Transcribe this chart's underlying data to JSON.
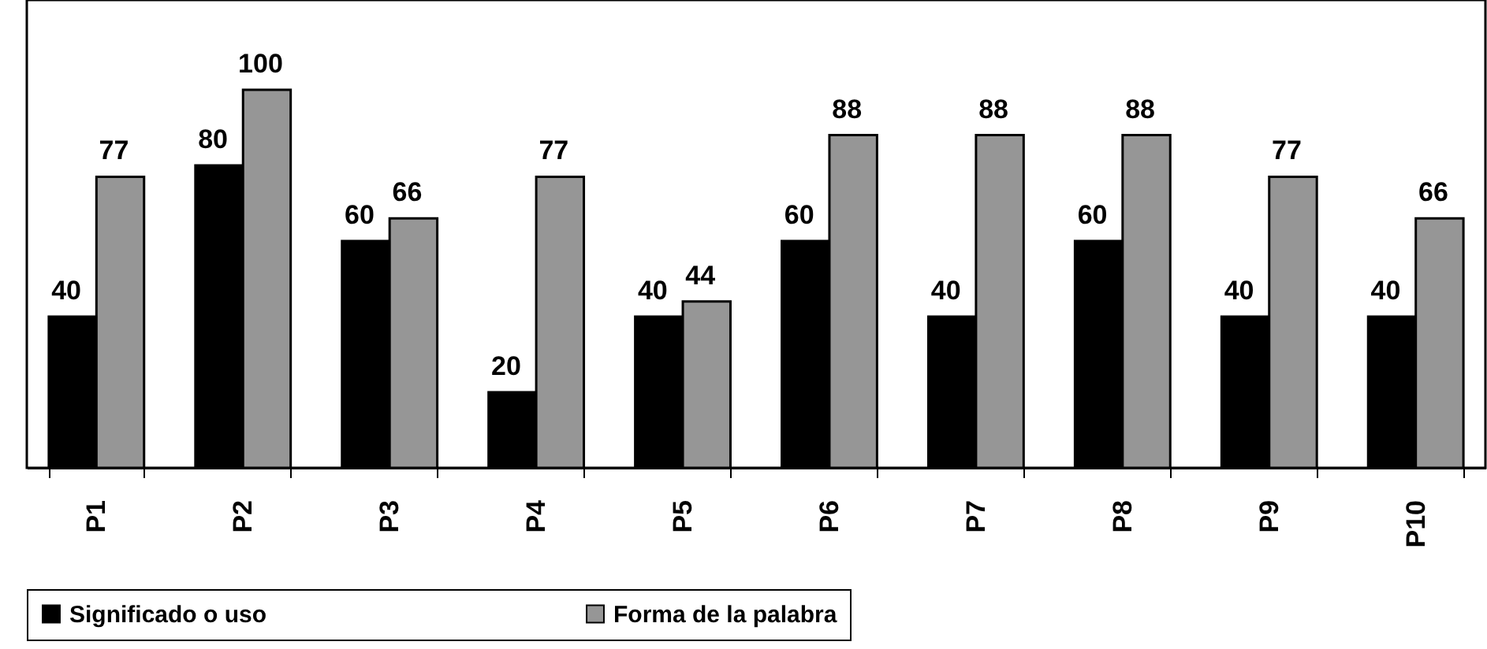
{
  "chart_data": {
    "type": "bar",
    "categories": [
      "P1",
      "P2",
      "P3",
      "P4",
      "P5",
      "P6",
      "P7",
      "P8",
      "P9",
      "P10"
    ],
    "series": [
      {
        "name": "Significado o uso",
        "color": "#000000",
        "values": [
          40,
          80,
          60,
          20,
          40,
          60,
          40,
          60,
          40,
          40
        ]
      },
      {
        "name": "Forma de la palabra",
        "color": "#969696",
        "values": [
          77,
          100,
          66,
          77,
          44,
          88,
          88,
          88,
          77,
          66
        ]
      }
    ],
    "data_labels": true,
    "legend": "bottom"
  }
}
